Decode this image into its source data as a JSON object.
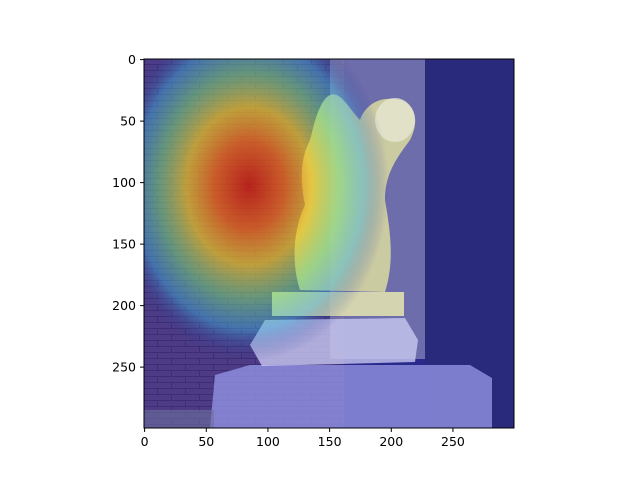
{
  "figure": {
    "image_description_icon": "gargoyle-statue-heatmap-image",
    "colormap": "jet",
    "colors": {
      "heatmap_hot": "#c81e0a",
      "heatmap_warm": "#f0c81e",
      "heatmap_mid": "#3cc8c8",
      "heatmap_cold": "#1e1e8c",
      "brick": "#5a3c6e",
      "stone": "#d2d2e6"
    }
  },
  "chart_data": {
    "type": "heatmap",
    "title": "",
    "xlabel": "",
    "ylabel": "",
    "xlim": [
      0,
      299
    ],
    "ylim": [
      299,
      0
    ],
    "x_ticks": [
      {
        "value": 0,
        "label": "0"
      },
      {
        "value": 50,
        "label": "50"
      },
      {
        "value": 100,
        "label": "100"
      },
      {
        "value": 150,
        "label": "150"
      },
      {
        "value": 200,
        "label": "200"
      },
      {
        "value": 250,
        "label": "250"
      }
    ],
    "y_ticks": [
      {
        "value": 0,
        "label": "0"
      },
      {
        "value": 50,
        "label": "50"
      },
      {
        "value": 100,
        "label": "100"
      },
      {
        "value": 150,
        "label": "150"
      },
      {
        "value": 200,
        "label": "200"
      },
      {
        "value": 250,
        "label": "250"
      }
    ],
    "grid": false,
    "hotspot": {
      "x": 85,
      "y": 105
    }
  }
}
